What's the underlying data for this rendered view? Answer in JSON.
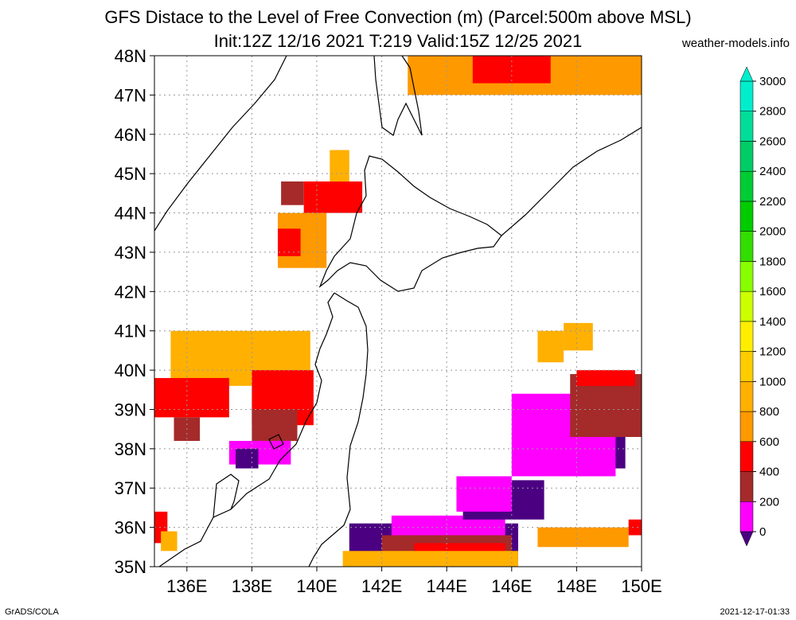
{
  "title_line1": "GFS Distace to the Level of Free Convection (m) (Parcel:500m above MSL)",
  "title_line2": "Init:12Z 12/16 2021 T:219 Valid:15Z 12/25 2021",
  "credit": "weather-models.info",
  "footer_left": "GrADS/COLA",
  "footer_right": "2021-12-17-01:33",
  "map": {
    "lat_labels": [
      "48N",
      "47N",
      "46N",
      "45N",
      "44N",
      "43N",
      "42N",
      "41N",
      "40N",
      "39N",
      "38N",
      "37N",
      "36N",
      "35N"
    ],
    "lat_values": [
      48,
      47,
      46,
      45,
      44,
      43,
      42,
      41,
      40,
      39,
      38,
      37,
      36,
      35
    ],
    "lon_labels": [
      "136E",
      "138E",
      "140E",
      "142E",
      "144E",
      "146E",
      "148E",
      "150E"
    ],
    "lon_values": [
      136,
      138,
      140,
      142,
      144,
      146,
      148,
      150
    ],
    "lon_range": [
      135,
      150
    ],
    "lat_range": [
      35,
      48
    ],
    "grid": true,
    "land_color": "#ffffff",
    "coast_color": "#000000"
  },
  "colorbar": {
    "levels": [
      "0",
      "200",
      "400",
      "600",
      "800",
      "1000",
      "1200",
      "1400",
      "1600",
      "1800",
      "2000",
      "2200",
      "2400",
      "2600",
      "2800",
      "3000"
    ],
    "colors": [
      "#4b0082",
      "#ff00ff",
      "#a52a2a",
      "#ff0000",
      "#ff9900",
      "#ffb000",
      "#ffcc00",
      "#ffee00",
      "#ccff00",
      "#88ff00",
      "#33dd00",
      "#00cc00",
      "#00cc33",
      "#00cc66",
      "#00dd99",
      "#00eecc",
      "#00ffdd"
    ],
    "under_color": "#4b0082",
    "over_color": "#00eecc"
  },
  "field_patches": [
    {
      "c": "#ffb000",
      "lon": [
        135.5,
        139.8
      ],
      "lat": [
        39.6,
        41.0
      ]
    },
    {
      "c": "#ff0000",
      "lon": [
        138.0,
        139.9
      ],
      "lat": [
        38.6,
        40.0
      ]
    },
    {
      "c": "#ff0000",
      "lon": [
        135.0,
        137.3
      ],
      "lat": [
        38.8,
        39.8
      ]
    },
    {
      "c": "#a52a2a",
      "lon": [
        138.0,
        139.4
      ],
      "lat": [
        38.2,
        39.0
      ]
    },
    {
      "c": "#a52a2a",
      "lon": [
        135.6,
        136.4
      ],
      "lat": [
        38.2,
        38.8
      ]
    },
    {
      "c": "#ff00ff",
      "lon": [
        137.3,
        139.2
      ],
      "lat": [
        37.6,
        38.2
      ]
    },
    {
      "c": "#4b0082",
      "lon": [
        137.5,
        138.2
      ],
      "lat": [
        37.5,
        38.0
      ]
    },
    {
      "c": "#ff9900",
      "lon": [
        138.8,
        140.3
      ],
      "lat": [
        42.6,
        44.0
      ]
    },
    {
      "c": "#ff0000",
      "lon": [
        138.8,
        139.5
      ],
      "lat": [
        42.9,
        43.6
      ]
    },
    {
      "c": "#ff0000",
      "lon": [
        139.6,
        141.4
      ],
      "lat": [
        44.0,
        44.8
      ]
    },
    {
      "c": "#a52a2a",
      "lon": [
        138.9,
        139.6
      ],
      "lat": [
        44.2,
        44.8
      ]
    },
    {
      "c": "#ffb000",
      "lon": [
        140.4,
        141.0
      ],
      "lat": [
        44.8,
        45.6
      ]
    },
    {
      "c": "#ff9900",
      "lon": [
        142.8,
        150.0
      ],
      "lat": [
        47.0,
        48.0
      ]
    },
    {
      "c": "#ff0000",
      "lon": [
        144.8,
        147.2
      ],
      "lat": [
        47.3,
        48.0
      ]
    },
    {
      "c": "#4b0082",
      "lon": [
        141.0,
        146.2
      ],
      "lat": [
        35.2,
        36.1
      ]
    },
    {
      "c": "#ff00ff",
      "lon": [
        142.3,
        145.8
      ],
      "lat": [
        35.6,
        36.3
      ]
    },
    {
      "c": "#a52a2a",
      "lon": [
        142.0,
        146.0
      ],
      "lat": [
        35.3,
        35.8
      ]
    },
    {
      "c": "#ff0000",
      "lon": [
        143.0,
        145.8
      ],
      "lat": [
        35.2,
        35.6
      ]
    },
    {
      "c": "#ffb000",
      "lon": [
        140.8,
        146.2
      ],
      "lat": [
        35.0,
        35.4
      ]
    },
    {
      "c": "#4b0082",
      "lon": [
        144.5,
        147.0
      ],
      "lat": [
        36.2,
        37.2
      ]
    },
    {
      "c": "#ff00ff",
      "lon": [
        144.3,
        146.0
      ],
      "lat": [
        36.4,
        37.3
      ]
    },
    {
      "c": "#4b0082",
      "lon": [
        146.5,
        149.5
      ],
      "lat": [
        37.5,
        39.2
      ]
    },
    {
      "c": "#ff00ff",
      "lon": [
        146.0,
        149.2
      ],
      "lat": [
        37.3,
        39.4
      ]
    },
    {
      "c": "#a52a2a",
      "lon": [
        147.8,
        150.0
      ],
      "lat": [
        38.3,
        39.9
      ]
    },
    {
      "c": "#ff0000",
      "lon": [
        148.0,
        149.8
      ],
      "lat": [
        39.6,
        40.0
      ]
    },
    {
      "c": "#ffb000",
      "lon": [
        147.6,
        148.5
      ],
      "lat": [
        40.5,
        41.2
      ]
    },
    {
      "c": "#ffb000",
      "lon": [
        146.8,
        147.6
      ],
      "lat": [
        40.2,
        41.0
      ]
    },
    {
      "c": "#ff9900",
      "lon": [
        146.8,
        149.6
      ],
      "lat": [
        35.5,
        36.0
      ]
    },
    {
      "c": "#ff0000",
      "lon": [
        149.6,
        150.0
      ],
      "lat": [
        35.8,
        36.2
      ]
    },
    {
      "c": "#ff0000",
      "lon": [
        135.0,
        135.4
      ],
      "lat": [
        35.6,
        36.4
      ]
    },
    {
      "c": "#ffb000",
      "lon": [
        135.2,
        135.7
      ],
      "lat": [
        35.4,
        35.9
      ]
    }
  ]
}
